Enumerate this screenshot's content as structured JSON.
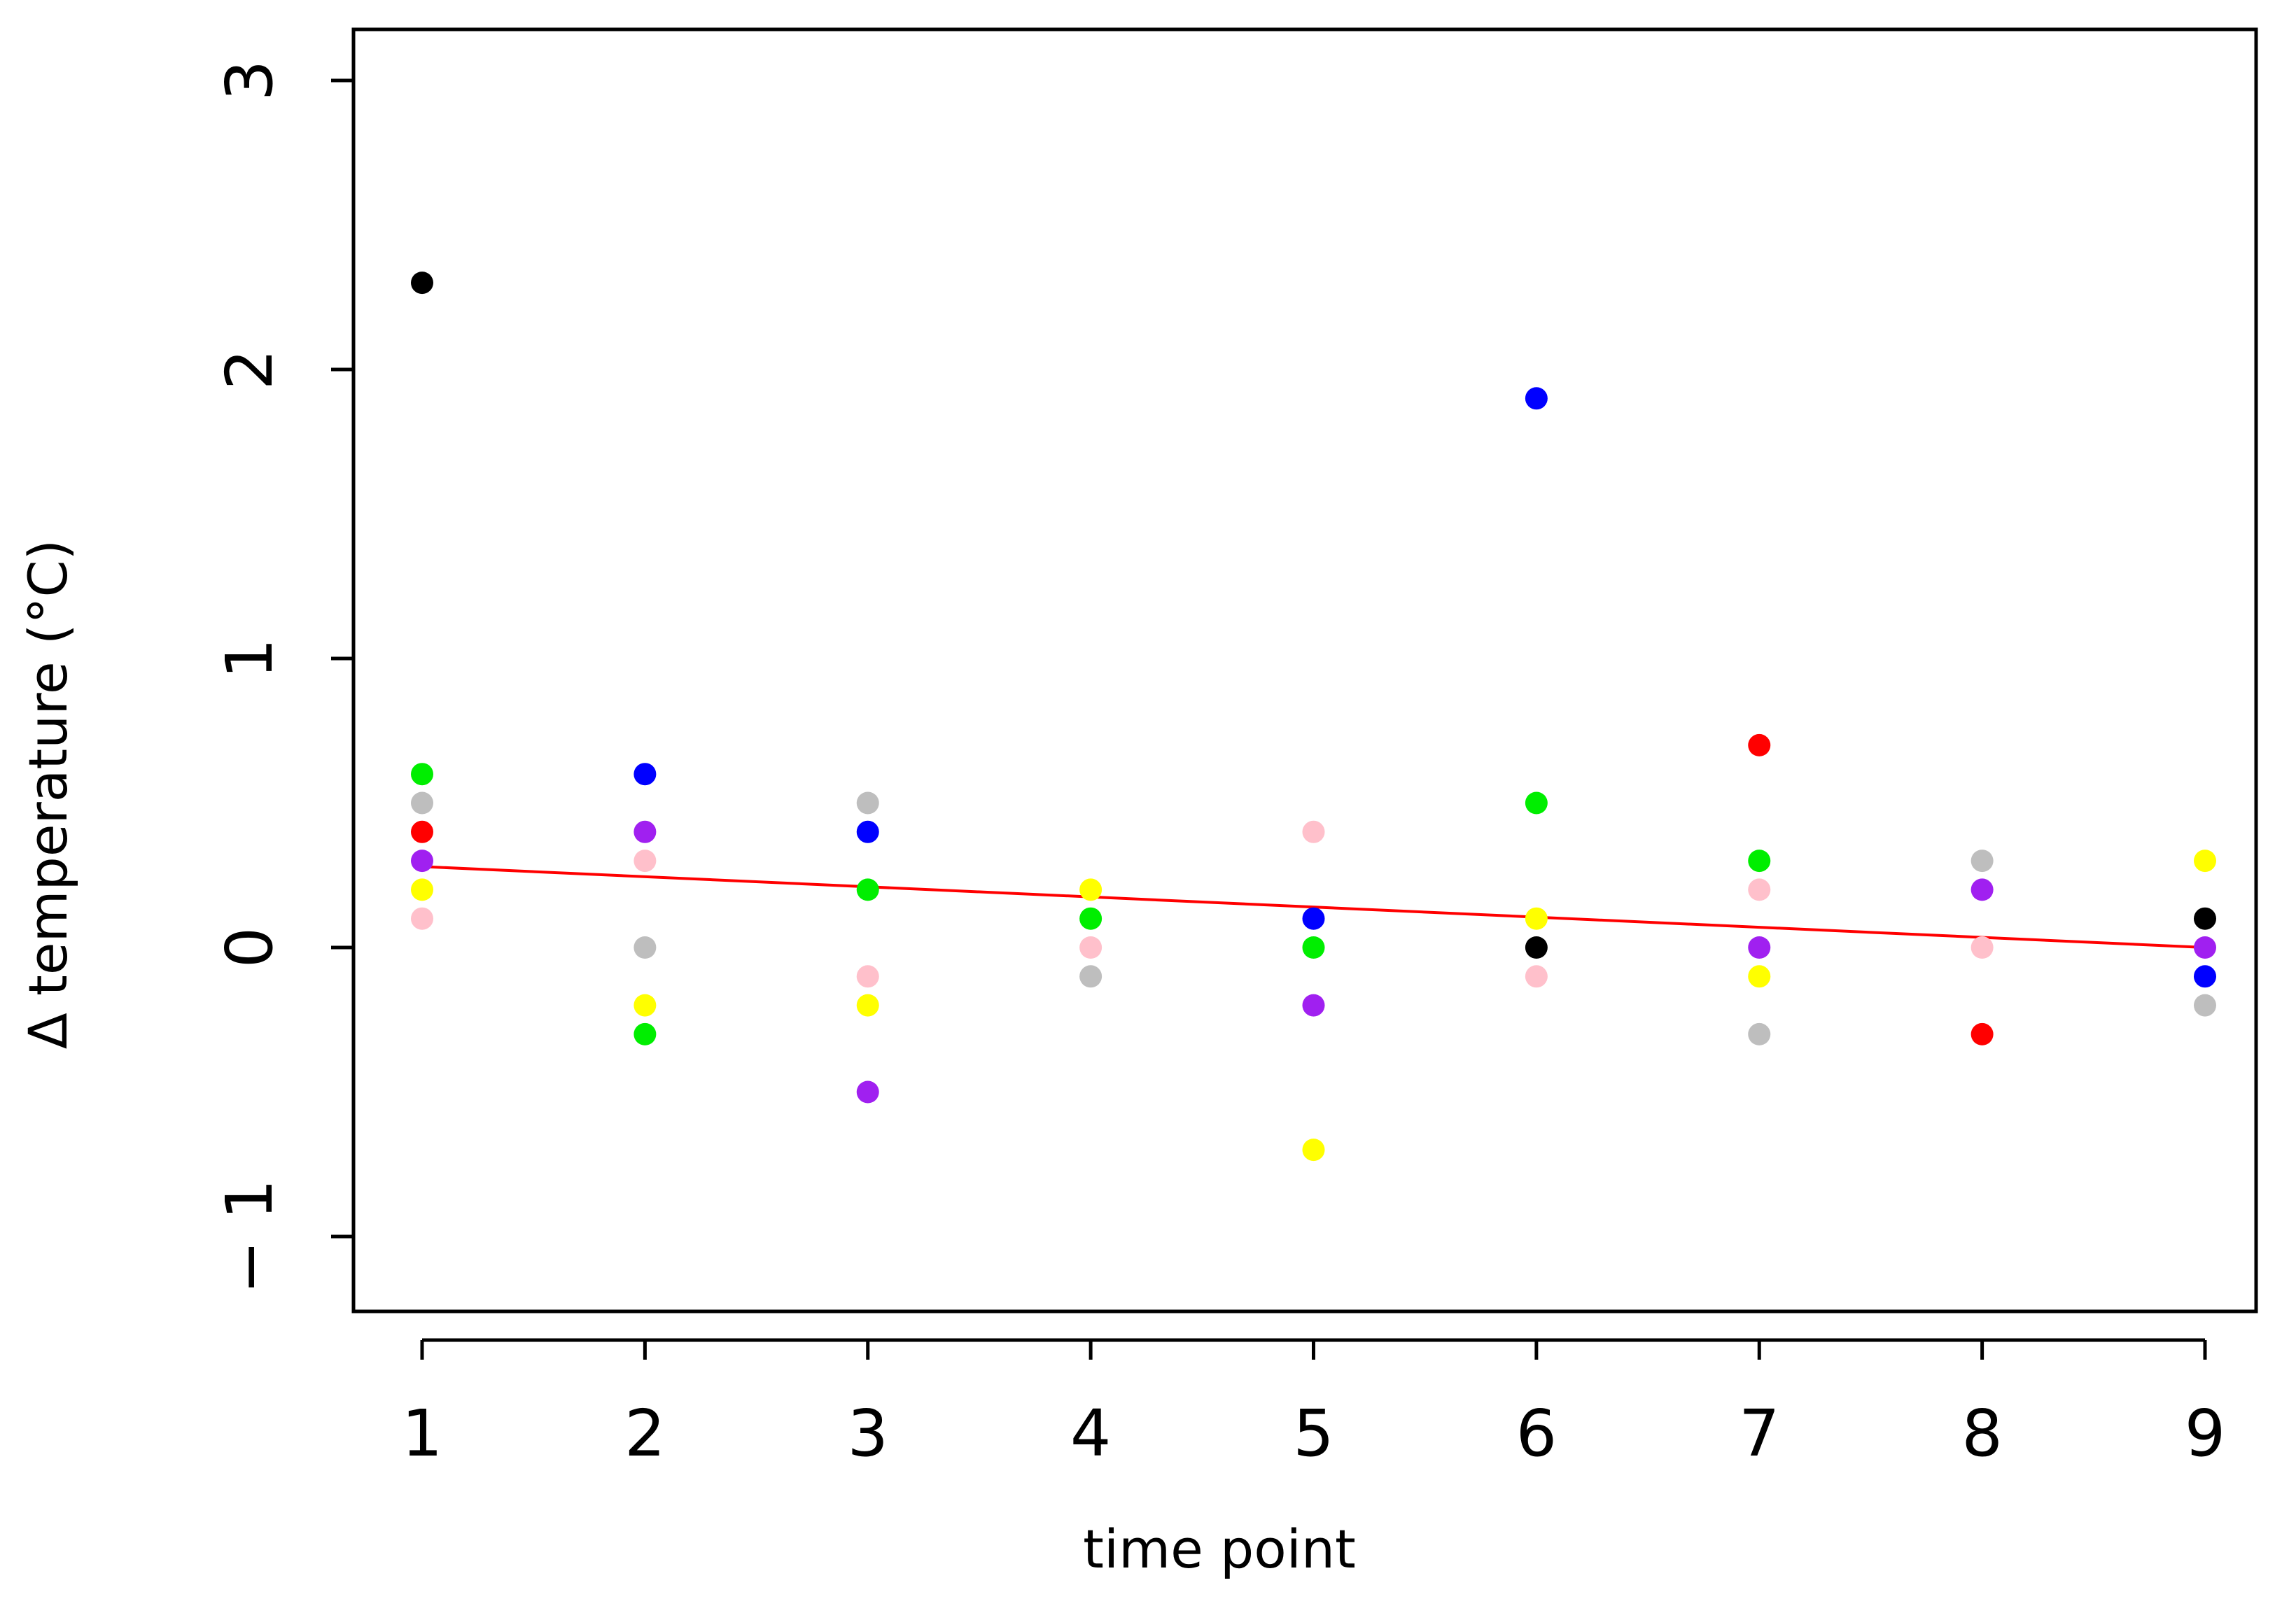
{
  "chart_data": {
    "type": "scatter",
    "title": "",
    "xlabel": "time point",
    "ylabel": "Δ temperature (°C)",
    "xlim": [
      0.7,
      9.2
    ],
    "ylim": [
      -1.25,
      3.2
    ],
    "x_ticks": [
      1,
      2,
      3,
      4,
      5,
      6,
      7,
      8,
      9
    ],
    "y_ticks": [
      -1,
      0,
      1,
      2,
      3
    ],
    "x_tick_labels": [
      "1",
      "2",
      "3",
      "4",
      "5",
      "6",
      "7",
      "8",
      "9"
    ],
    "y_tick_labels": [
      "− 1",
      "0",
      "1",
      "2",
      "3"
    ],
    "grid": false,
    "legend": "none",
    "points": [
      {
        "x": 1,
        "y": 2.3,
        "color": "#000000"
      },
      {
        "x": 1,
        "y": 0.6,
        "color": "#00ee00"
      },
      {
        "x": 1,
        "y": 0.5,
        "color": "#bebebe"
      },
      {
        "x": 1,
        "y": 0.4,
        "color": "#ff0000"
      },
      {
        "x": 1,
        "y": 0.3,
        "color": "#a020f0"
      },
      {
        "x": 1,
        "y": 0.2,
        "color": "#ffff00"
      },
      {
        "x": 1,
        "y": 0.1,
        "color": "#ffc0cb"
      },
      {
        "x": 2,
        "y": 0.6,
        "color": "#0000ff"
      },
      {
        "x": 2,
        "y": 0.4,
        "color": "#a020f0"
      },
      {
        "x": 2,
        "y": 0.3,
        "color": "#ffc0cb"
      },
      {
        "x": 2,
        "y": 0.0,
        "color": "#bebebe"
      },
      {
        "x": 2,
        "y": -0.2,
        "color": "#ffff00"
      },
      {
        "x": 2,
        "y": -0.3,
        "color": "#00ee00"
      },
      {
        "x": 3,
        "y": 0.5,
        "color": "#bebebe"
      },
      {
        "x": 3,
        "y": 0.4,
        "color": "#0000ff"
      },
      {
        "x": 3,
        "y": 0.2,
        "color": "#00ee00"
      },
      {
        "x": 3,
        "y": -0.1,
        "color": "#ffc0cb"
      },
      {
        "x": 3,
        "y": -0.2,
        "color": "#ffff00"
      },
      {
        "x": 3,
        "y": -0.5,
        "color": "#a020f0"
      },
      {
        "x": 4,
        "y": 0.2,
        "color": "#ffff00"
      },
      {
        "x": 4,
        "y": 0.1,
        "color": "#00ee00"
      },
      {
        "x": 4,
        "y": 0.0,
        "color": "#ffc0cb"
      },
      {
        "x": 4,
        "y": -0.1,
        "color": "#bebebe"
      },
      {
        "x": 5,
        "y": 0.4,
        "color": "#ffc0cb"
      },
      {
        "x": 5,
        "y": 0.1,
        "color": "#0000ff"
      },
      {
        "x": 5,
        "y": 0.0,
        "color": "#00ee00"
      },
      {
        "x": 5,
        "y": -0.2,
        "color": "#a020f0"
      },
      {
        "x": 5,
        "y": -0.7,
        "color": "#ffff00"
      },
      {
        "x": 6,
        "y": 1.9,
        "color": "#0000ff"
      },
      {
        "x": 6,
        "y": 0.5,
        "color": "#00ee00"
      },
      {
        "x": 6,
        "y": 0.1,
        "color": "#ffff00"
      },
      {
        "x": 6,
        "y": 0.0,
        "color": "#000000"
      },
      {
        "x": 6,
        "y": -0.1,
        "color": "#ffc0cb"
      },
      {
        "x": 7,
        "y": 0.7,
        "color": "#ff0000"
      },
      {
        "x": 7,
        "y": 0.3,
        "color": "#00ee00"
      },
      {
        "x": 7,
        "y": 0.2,
        "color": "#ffc0cb"
      },
      {
        "x": 7,
        "y": 0.0,
        "color": "#a020f0"
      },
      {
        "x": 7,
        "y": -0.1,
        "color": "#ffff00"
      },
      {
        "x": 7,
        "y": -0.3,
        "color": "#bebebe"
      },
      {
        "x": 8,
        "y": 0.3,
        "color": "#bebebe"
      },
      {
        "x": 8,
        "y": 0.2,
        "color": "#a020f0"
      },
      {
        "x": 8,
        "y": 0.0,
        "color": "#ffc0cb"
      },
      {
        "x": 8,
        "y": -0.3,
        "color": "#ff0000"
      },
      {
        "x": 9,
        "y": 0.3,
        "color": "#ffff00"
      },
      {
        "x": 9,
        "y": 0.1,
        "color": "#000000"
      },
      {
        "x": 9,
        "y": 0.0,
        "color": "#a020f0"
      },
      {
        "x": 9,
        "y": -0.1,
        "color": "#0000ff"
      },
      {
        "x": 9,
        "y": -0.2,
        "color": "#bebebe"
      }
    ],
    "trend_line": {
      "x": [
        1,
        9
      ],
      "y": [
        0.28,
        0.0
      ],
      "color": "#ff0000"
    }
  }
}
